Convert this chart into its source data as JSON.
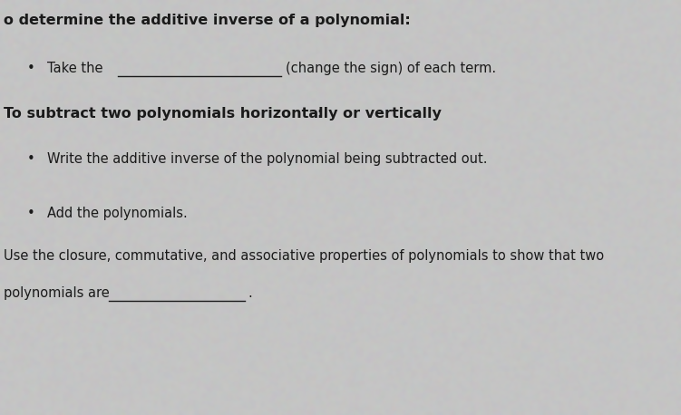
{
  "bg_color": "#c8c8c8",
  "text_color": "#1a1a1a",
  "title_line": "o determine the additive inverse of a polynomial:",
  "bullet1_label": "•",
  "bullet1_text1": "Take the",
  "bullet1_text2": "(change the sign) of each term.",
  "section2_title": "To subtract two polynomials horizontally or vertically",
  "section2_colon": ":",
  "bullet2_label": "•",
  "bullet2_text": "Write the additive inverse of the polynomial being subtracted out.",
  "bullet3_label": "•",
  "bullet3_text": "Add the polynomials.",
  "last_line1": "Use the closure, commutative, and associative properties of polynomials to show that two",
  "last_line2_prefix": "polynomials are",
  "period": ".",
  "font_size_title": 11.5,
  "font_size_section": 11.5,
  "font_size_body": 10.5
}
